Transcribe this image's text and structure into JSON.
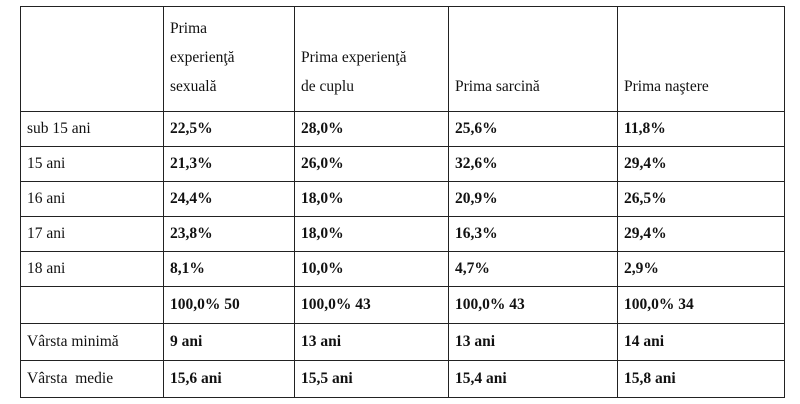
{
  "table": {
    "header": {
      "empty": "",
      "columns": [
        [
          "Prima",
          "experienţă",
          "sexuală"
        ],
        [
          "Prima experienţă",
          "de cuplu"
        ],
        [
          "Prima sarcină"
        ],
        [
          "Prima naştere"
        ]
      ]
    },
    "rows": [
      {
        "label": "sub 15 ani",
        "values": [
          "22,5%",
          "28,0%",
          "25,6%",
          "11,8%"
        ]
      },
      {
        "label": "15 ani",
        "values": [
          "21,3%",
          "26,0%",
          "32,6%",
          "29,4%"
        ]
      },
      {
        "label": "16 ani",
        "values": [
          "24,4%",
          "18,0%",
          "20,9%",
          "26,5%"
        ]
      },
      {
        "label": "17 ani",
        "values": [
          "23,8%",
          "18,0%",
          "16,3%",
          "29,4%"
        ]
      },
      {
        "label": "18 ani",
        "values": [
          "8,1%",
          "10,0%",
          "4,7%",
          "2,9%"
        ]
      }
    ],
    "totals": {
      "label": "",
      "values": [
        "100,0% 50",
        "100,0% 43",
        "100,0% 43",
        "100,0% 34"
      ]
    },
    "stats": [
      {
        "label": "Vârsta minimă",
        "values": [
          "9 ani",
          "13 ani",
          "13 ani",
          "14 ani"
        ]
      },
      {
        "label": "Vârsta  medie",
        "values": [
          "15,6 ani",
          "15,5 ani",
          "15,4 ani",
          "15,8 ani"
        ]
      }
    ]
  }
}
